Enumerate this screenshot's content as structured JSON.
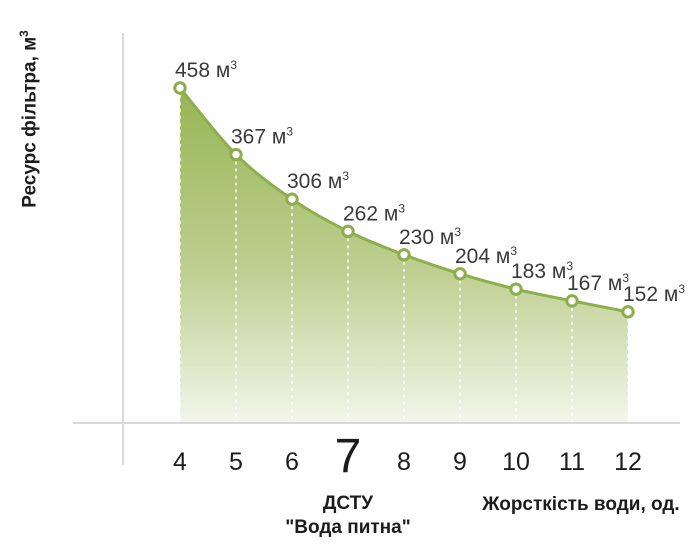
{
  "chart_data": {
    "type": "area",
    "title": "",
    "x_categories": [
      "4",
      "5",
      "6",
      "7",
      "8",
      "9",
      "10",
      "11",
      "12"
    ],
    "values": [
      458,
      367,
      306,
      262,
      230,
      204,
      183,
      167,
      152
    ],
    "unit": "м",
    "unit_sup": "3",
    "xlabel": "Жорсткість води, од.",
    "ylabel_text": "Ресурс фільтра, м",
    "ylabel_sup": "3",
    "highlight_category": "7",
    "highlight_note_line1": "ДСТУ",
    "highlight_note_line2": "\"Вода питна\"",
    "ylim": [
      0,
      458
    ],
    "grid": false,
    "legend": "none",
    "colors": {
      "line": "#8cae4b",
      "fill_top": "#96b654",
      "fill_mid": "#becf92",
      "fill_bottom": "#f3f5ea",
      "marker_fill": "#ffffff",
      "dashed_guide": "#ffffff",
      "axis": "#d9d9d9",
      "tick_text": "#1c1c1c",
      "value_label_text": "#3a3a3a"
    }
  }
}
